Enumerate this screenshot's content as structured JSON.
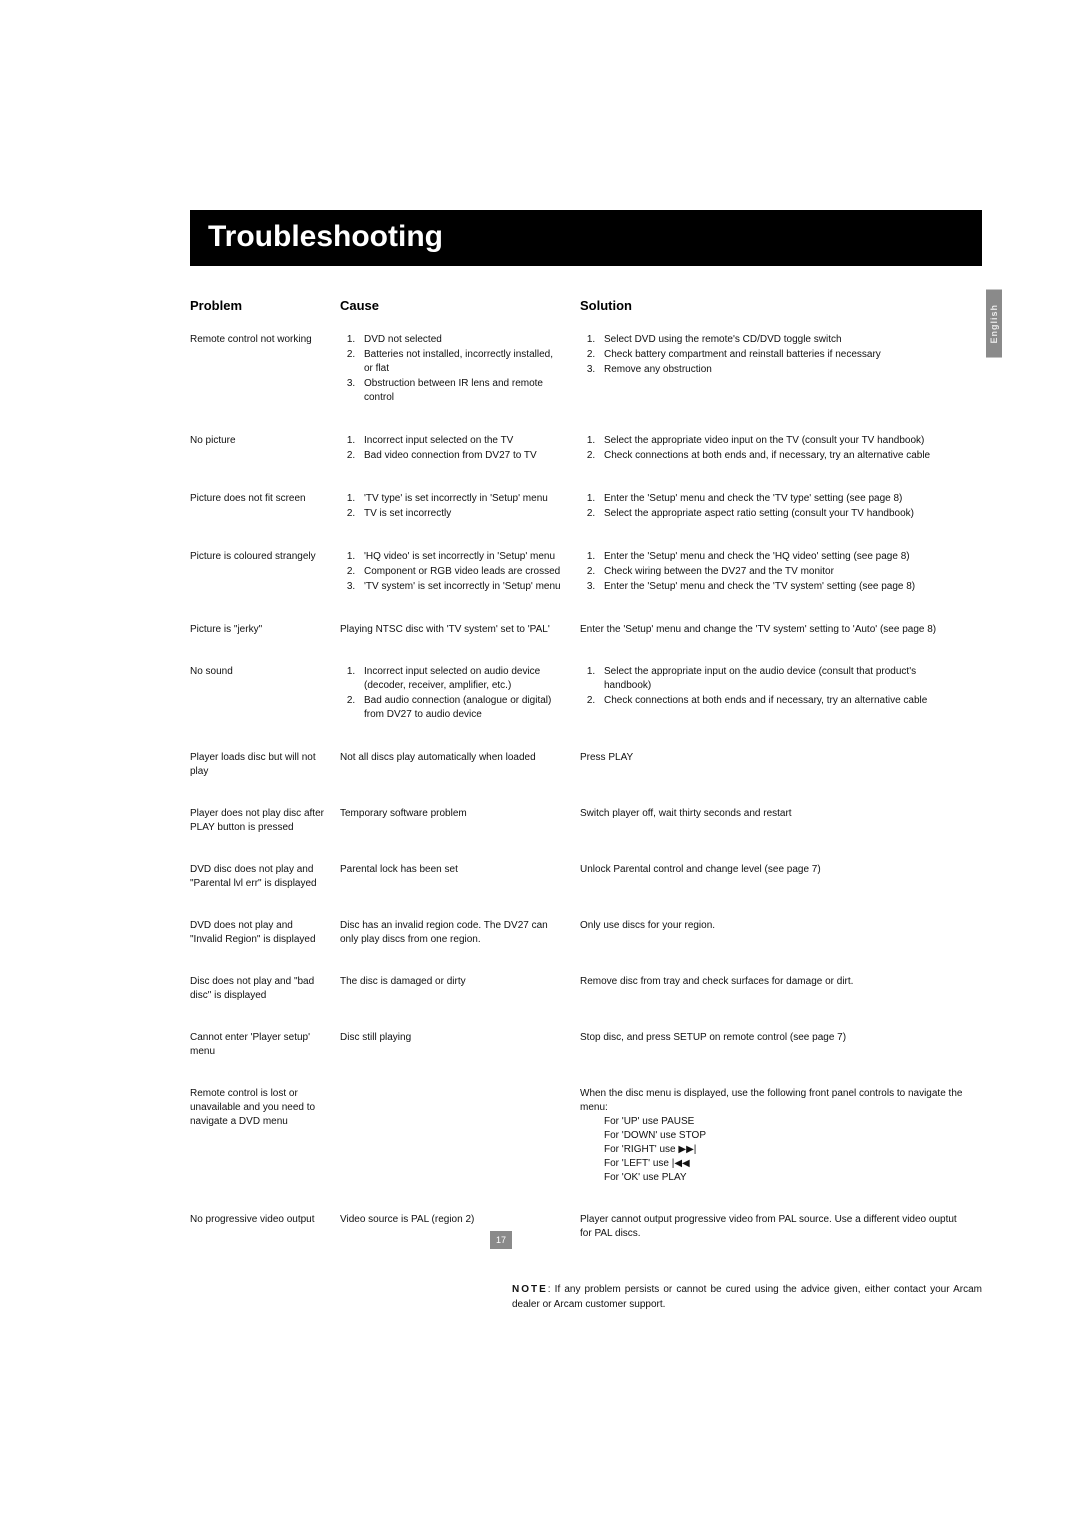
{
  "title": "Troubleshooting",
  "langTab": "English",
  "pageNumber": "17",
  "headers": {
    "problem": "Problem",
    "cause": "Cause",
    "solution": "Solution"
  },
  "rows": [
    {
      "problem": "Remote control not working",
      "causes": [
        "DVD not selected",
        "Batteries not installed, incorrectly installed, or flat",
        "Obstruction between IR lens and remote control"
      ],
      "solutions": [
        "Select DVD using the remote's CD/DVD toggle switch",
        "Check battery compartment and reinstall batteries if necessary",
        "Remove any obstruction"
      ]
    },
    {
      "problem": "No picture",
      "causes": [
        "Incorrect input selected on the TV",
        "Bad video connection from DV27 to TV"
      ],
      "solutions": [
        "Select the appropriate video input on the TV (consult your TV handbook)",
        "Check connections at both ends and, if necessary, try an alternative cable"
      ]
    },
    {
      "problem": "Picture does not fit screen",
      "causes": [
        "'TV type' is set incorrectly in 'Setup' menu",
        "TV is set incorrectly"
      ],
      "solutions": [
        "Enter the 'Setup' menu and check the 'TV type' setting (see page 8)",
        "Select the appropriate aspect ratio setting (consult your TV handbook)"
      ]
    },
    {
      "problem": "Picture is coloured strangely",
      "causes": [
        "'HQ video' is set incorrectly in 'Setup' menu",
        "Component or RGB video leads are crossed",
        "'TV system' is set incorrectly in 'Setup' menu"
      ],
      "solutions": [
        "Enter the 'Setup' menu and check the 'HQ video' setting (see page 8)",
        "Check wiring between the DV27 and the TV monitor",
        "Enter the 'Setup' menu and check the 'TV system' setting (see page 8)"
      ]
    },
    {
      "problem": "Picture is \"jerky\"",
      "causeText": "Playing NTSC disc with 'TV system' set to 'PAL'",
      "solutionText": "Enter the 'Setup' menu and change the 'TV system' setting to 'Auto' (see page 8)"
    },
    {
      "problem": "No sound",
      "causes": [
        "Incorrect input selected on audio device (decoder, receiver, amplifier, etc.)",
        "Bad audio connection (analogue or digital) from DV27 to audio device"
      ],
      "solutions": [
        "Select the appropriate input on the audio device (consult that product's handbook)",
        "Check connections at both ends and if necessary, try an alternative cable"
      ]
    },
    {
      "problem": "Player loads disc but will not play",
      "causeText": "Not all discs play automatically when loaded",
      "solutionText": "Press PLAY"
    },
    {
      "problem": "Player does not play disc after PLAY button is pressed",
      "causeText": "Temporary software problem",
      "solutionText": "Switch player off, wait thirty seconds and restart"
    },
    {
      "problem": "DVD disc does not play and \"Parental lvl err\" is displayed",
      "causeText": "Parental lock has been set",
      "solutionText": "Unlock Parental control and change level (see page 7)"
    },
    {
      "problem": "DVD does not play and \"Invalid Region\" is displayed",
      "causeText": "Disc has an invalid region code. The DV27 can only play discs from one region.",
      "solutionText": "Only use discs for your region."
    },
    {
      "problem": "Disc does not play and \"bad disc\" is displayed",
      "causeText": "The disc is damaged or dirty",
      "solutionText": "Remove disc from tray and check surfaces for damage or dirt."
    },
    {
      "problem": "Cannot enter 'Player setup' menu",
      "causeText": "Disc still playing",
      "solutionText": "Stop disc, and press SETUP on remote control (see page 7)"
    },
    {
      "problem": "Remote control is lost or unavailable and you need to navigate a DVD menu",
      "causeText": "",
      "solutionLines": [
        "When the disc menu is displayed, use the following front panel controls to navigate the menu:",
        "For 'UP' use PAUSE",
        "For 'DOWN' use STOP",
        "For 'RIGHT' use ▶▶|",
        "For 'LEFT' use |◀◀",
        "For 'OK' use PLAY"
      ]
    },
    {
      "problem": "No progressive video output",
      "causeText": "Video source is PAL (region 2)",
      "solutionText": "Player cannot output progressive video from PAL source. Use a different video ouptut for PAL discs."
    }
  ],
  "note": {
    "label": "NOTE",
    "text": ": If any problem persists or cannot be cured using the advice given, either contact your Arcam dealer or Arcam customer support."
  }
}
